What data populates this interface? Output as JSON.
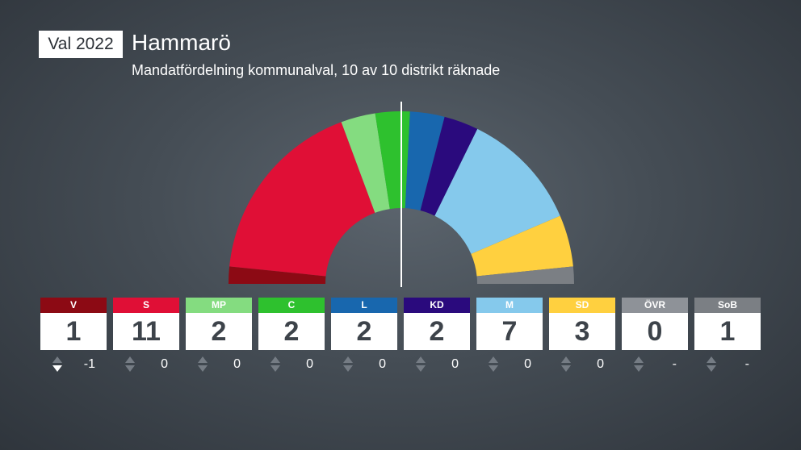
{
  "header": {
    "badge": "Val 2022",
    "title": "Hammarö",
    "subtitle": "Mandatfördelning kommunalval, 10 av 10 distrikt räknade"
  },
  "chart_data": {
    "type": "parliament-half-donut",
    "total_seats": 31,
    "majority_line": "center",
    "parties": [
      {
        "abbr": "V",
        "seats": 1,
        "change": "-1",
        "direction": "down",
        "color": "#8c0a14"
      },
      {
        "abbr": "S",
        "seats": 11,
        "change": "0",
        "direction": "none",
        "color": "#e00f36"
      },
      {
        "abbr": "MP",
        "seats": 2,
        "change": "0",
        "direction": "none",
        "color": "#84dc80"
      },
      {
        "abbr": "C",
        "seats": 2,
        "change": "0",
        "direction": "none",
        "color": "#2ec12e"
      },
      {
        "abbr": "L",
        "seats": 2,
        "change": "0",
        "direction": "none",
        "color": "#1867ae"
      },
      {
        "abbr": "KD",
        "seats": 2,
        "change": "0",
        "direction": "none",
        "color": "#2a0a7d"
      },
      {
        "abbr": "M",
        "seats": 7,
        "change": "0",
        "direction": "none",
        "color": "#85c9ec"
      },
      {
        "abbr": "SD",
        "seats": 3,
        "change": "0",
        "direction": "none",
        "color": "#ffd03f"
      },
      {
        "abbr": "ÖVR",
        "seats": 0,
        "change": "-",
        "direction": "none",
        "color": "#8e9298"
      },
      {
        "abbr": "SoB",
        "seats": 1,
        "change": "-",
        "direction": "none",
        "color": "#7b7f84"
      }
    ]
  }
}
